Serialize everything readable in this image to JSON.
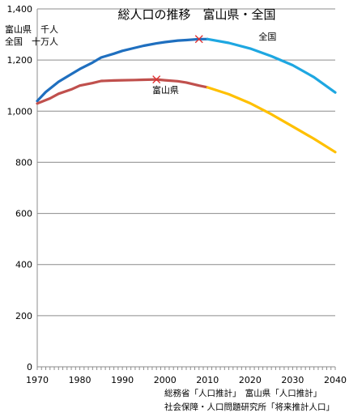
{
  "chart_data": {
    "type": "line",
    "title": "総人口の推移　富山県・全国",
    "unit_labels": [
      "富山県　千人",
      "全国　十万人"
    ],
    "xlim": [
      1970,
      2040
    ],
    "ylim": [
      0,
      1400
    ],
    "x_ticks": [
      1970,
      1980,
      1990,
      2000,
      2010,
      2020,
      2030,
      2040
    ],
    "y_ticks": [
      0,
      200,
      400,
      600,
      800,
      1000,
      1200,
      1400
    ],
    "y_tick_labels": [
      "0",
      "200",
      "400",
      "600",
      "800",
      "1,000",
      "1,200",
      "1,400"
    ],
    "grid": "horizontal",
    "series": [
      {
        "name": "全国",
        "segment": "actual",
        "color": "#1F6FBF",
        "points": [
          [
            1970,
            1040
          ],
          [
            1972,
            1075
          ],
          [
            1975,
            1115
          ],
          [
            1978,
            1145
          ],
          [
            1980,
            1165
          ],
          [
            1983,
            1190
          ],
          [
            1985,
            1210
          ],
          [
            1988,
            1225
          ],
          [
            1990,
            1236
          ],
          [
            1993,
            1248
          ],
          [
            1995,
            1256
          ],
          [
            1998,
            1265
          ],
          [
            2000,
            1270
          ],
          [
            2003,
            1276
          ],
          [
            2005,
            1278
          ],
          [
            2008,
            1282
          ],
          [
            2010,
            1282
          ]
        ]
      },
      {
        "name": "全国",
        "segment": "projection",
        "color": "#1EA7E1",
        "points": [
          [
            2010,
            1282
          ],
          [
            2015,
            1267
          ],
          [
            2020,
            1245
          ],
          [
            2025,
            1215
          ],
          [
            2030,
            1180
          ],
          [
            2035,
            1133
          ],
          [
            2040,
            1073
          ]
        ]
      },
      {
        "name": "富山県",
        "segment": "actual",
        "color": "#C0504D",
        "points": [
          [
            1970,
            1030
          ],
          [
            1973,
            1050
          ],
          [
            1975,
            1068
          ],
          [
            1978,
            1085
          ],
          [
            1980,
            1100
          ],
          [
            1983,
            1110
          ],
          [
            1985,
            1118
          ],
          [
            1988,
            1120
          ],
          [
            1990,
            1121
          ],
          [
            1993,
            1122
          ],
          [
            1995,
            1123
          ],
          [
            1998,
            1124
          ],
          [
            2000,
            1121
          ],
          [
            2003,
            1117
          ],
          [
            2005,
            1112
          ],
          [
            2008,
            1100
          ],
          [
            2010,
            1093
          ]
        ]
      },
      {
        "name": "富山県",
        "segment": "projection",
        "color": "#FFC000",
        "points": [
          [
            2010,
            1093
          ],
          [
            2015,
            1066
          ],
          [
            2020,
            1031
          ],
          [
            2025,
            988
          ],
          [
            2030,
            940
          ],
          [
            2035,
            892
          ],
          [
            2040,
            840
          ]
        ]
      }
    ],
    "peak_markers": [
      {
        "x": 2008,
        "y": 1282,
        "series": "全国"
      },
      {
        "x": 1998,
        "y": 1124,
        "series": "富山県"
      }
    ],
    "series_labels": [
      {
        "text": "全国",
        "x": 2022,
        "y": 1280
      },
      {
        "text": "富山県",
        "x": 1997,
        "y": 1070
      }
    ],
    "source_lines": [
      "総務省「人口推計」　富山県「人口推計」",
      "社会保障・人口問題研究所「将来推計人口」"
    ]
  }
}
